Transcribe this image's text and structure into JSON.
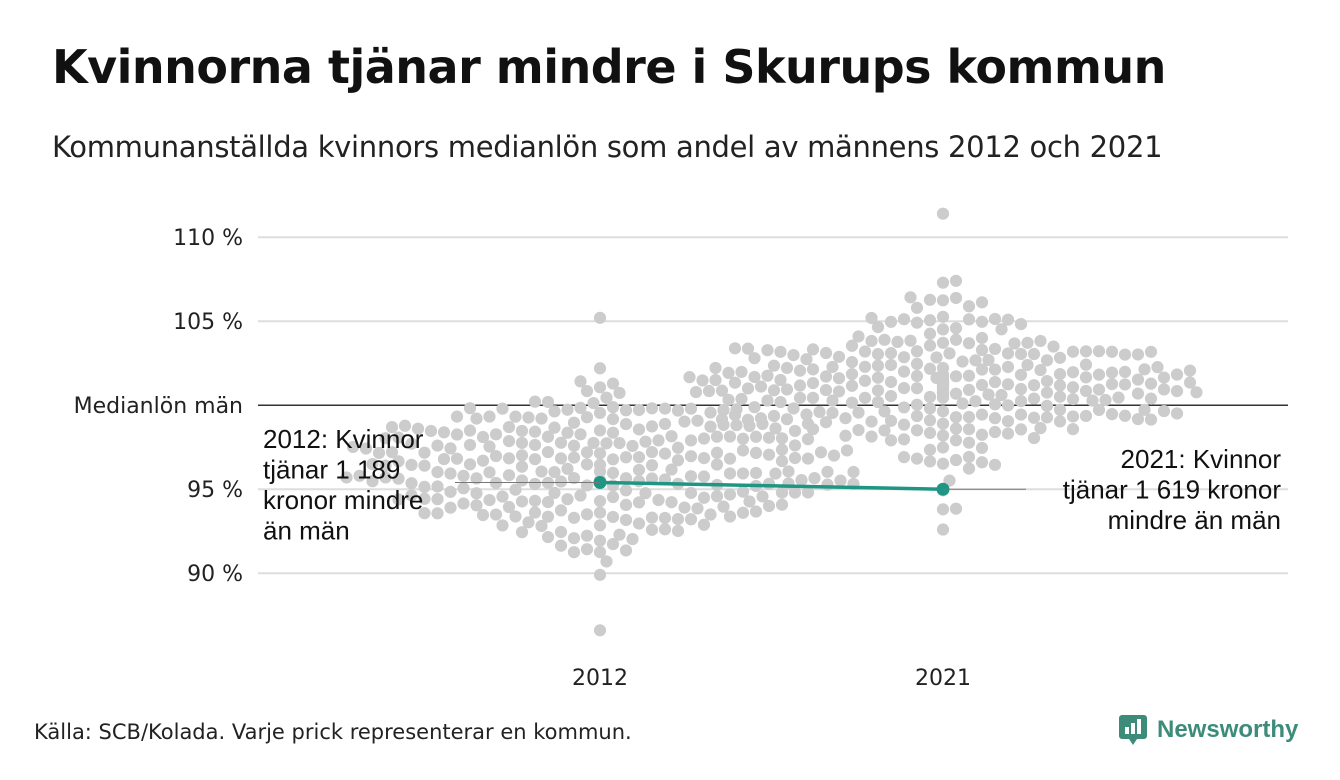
{
  "title": "Kvinnorna tjänar mindre i Skurups kommun",
  "subtitle": "Kommunanställda kvinnors medianlön som andel av männens 2012 och 2021",
  "footer": "Källa: SCB/Kolada. Varje prick representerar en kommun.",
  "brand": "Newsworthy",
  "colors": {
    "dots": "#cccccc",
    "highlight": "#1e9683",
    "grid": "#dddddd",
    "reference": "#333333",
    "brand": "#3d8c7a"
  },
  "chart_data": {
    "type": "scatter",
    "subtype": "beeswarm",
    "categories": [
      "2012",
      "2021"
    ],
    "ylim": [
      85.5,
      111.5
    ],
    "yticks": [
      90,
      95,
      105,
      110
    ],
    "ytick_labels": [
      "90 %",
      "95 %",
      "105 %",
      "110 %"
    ],
    "reference_line": {
      "value": 100,
      "label": "Medianlön män"
    },
    "grid": true,
    "highlight": {
      "values": [
        95.4,
        95.0
      ]
    },
    "annotations": [
      {
        "category": "2012",
        "lines": [
          "2012: Kvinnor",
          "tjänar 1 189",
          "kronor mindre",
          "än män"
        ]
      },
      {
        "category": "2021",
        "lines": [
          "2021: Kvinnor",
          "tjänar 1 619 kronor",
          "mindre än män"
        ]
      }
    ],
    "distribution": [
      {
        "category": "2012",
        "count": 290,
        "median": 96.2,
        "spread": 2.4,
        "min": 86.6,
        "max": 105.2
      },
      {
        "category": "2021",
        "count": 290,
        "median": 101.3,
        "spread": 2.2,
        "min": 92.6,
        "max": 111.4
      }
    ]
  }
}
